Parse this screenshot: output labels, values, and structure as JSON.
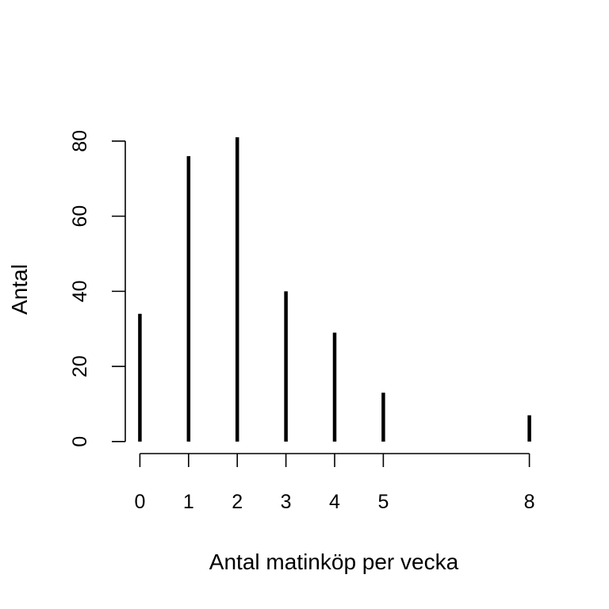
{
  "chart_data": {
    "type": "bar",
    "title": "",
    "xlabel": "Antal matinköp per vecka",
    "ylabel": "Antal",
    "x": [
      0,
      1,
      2,
      3,
      4,
      5,
      8
    ],
    "x_tick_labels": [
      "0",
      "1",
      "2",
      "3",
      "4",
      "5",
      "8"
    ],
    "values": [
      34,
      76,
      81,
      40,
      29,
      13,
      7
    ],
    "y_ticks": [
      0,
      20,
      40,
      60,
      80
    ],
    "y_tick_labels": [
      "0",
      "20",
      "40",
      "60",
      "80"
    ],
    "xlim": [
      -0.3,
      8.3
    ],
    "ylim": [
      -3.2,
      84.2
    ],
    "grid": false,
    "legend": "none",
    "bar_color": "#000000"
  }
}
